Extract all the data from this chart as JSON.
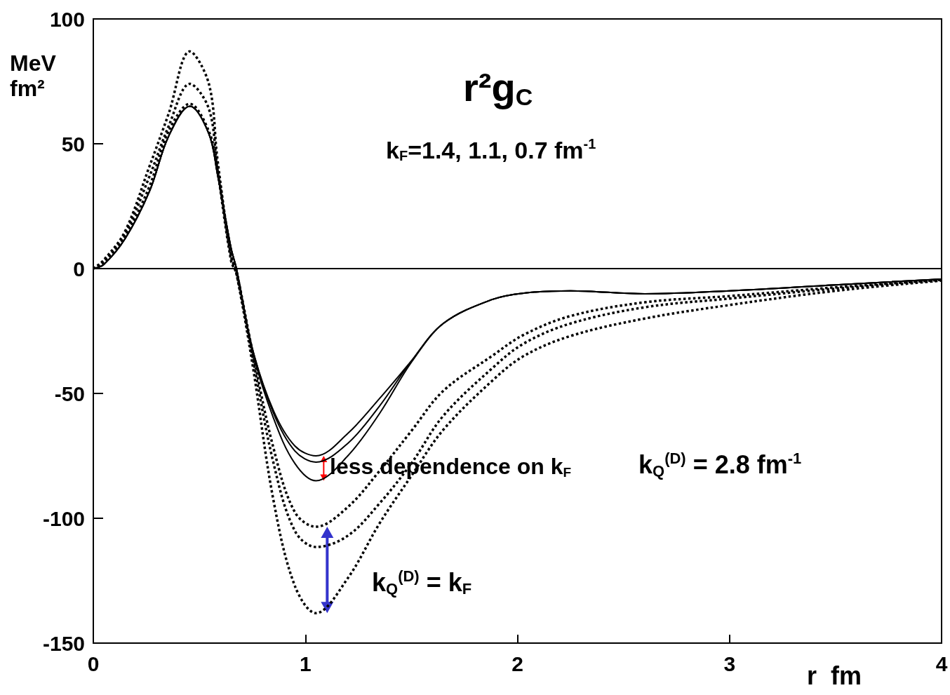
{
  "chart_data": {
    "type": "line",
    "title": "r²g$_{C}$",
    "subtitle": "k$_{F}$=1.4, 1.1, 0.7 fm$^{-1}$",
    "xlabel": "r  fm",
    "ylabel": "MeV\nfm²",
    "x": [
      0,
      0.05,
      0.15,
      0.265,
      0.355,
      0.455,
      0.545,
      0.585,
      0.65,
      0.675,
      0.75,
      0.85,
      0.95,
      1.05,
      1.2,
      1.35,
      1.5,
      1.65,
      1.88,
      2.03,
      2.25,
      2.6,
      3.0,
      3.5,
      4.0
    ],
    "series": [
      {
        "color": "#000000",
        "line_style": "solid",
        "values": [
          0,
          1.7,
          12,
          31,
          53,
          65,
          54,
          38,
          8,
          0,
          -32,
          -57,
          -71,
          -75,
          -66,
          -52,
          -37,
          -22,
          -12.4,
          -9.8,
          -8.9,
          -10.1,
          -8.9,
          -6.5,
          -4.2
        ]
      },
      {
        "color": "#000000",
        "line_style": "solid",
        "values": [
          0,
          1.7,
          12,
          31,
          53,
          65,
          54,
          38,
          8,
          0,
          -32,
          -58,
          -73,
          -77.5,
          -70,
          -55,
          -37,
          -22,
          -12.4,
          -9.8,
          -8.9,
          -10.1,
          -8.9,
          -6.5,
          -4.2
        ]
      },
      {
        "color": "#000000",
        "line_style": "solid",
        "values": [
          0,
          1.7,
          12,
          31,
          53,
          65,
          54,
          38,
          8,
          0,
          -33,
          -60,
          -78,
          -85,
          -75,
          -58,
          -37.5,
          -22,
          -12.4,
          -9.8,
          -8.9,
          -10.1,
          -8.9,
          -6.5,
          -4.2
        ]
      },
      {
        "color": "#000000",
        "line_style": "dotted",
        "values": [
          0,
          2.5,
          13,
          33,
          55,
          66,
          55,
          40,
          5,
          -1,
          -33,
          -72,
          -97.5,
          -103.4,
          -95.5,
          -81,
          -65,
          -49,
          -35,
          -26.5,
          -19,
          -13.5,
          -11,
          -7.5,
          -4.5
        ]
      },
      {
        "color": "#000000",
        "line_style": "dotted",
        "values": [
          0,
          3,
          14,
          37,
          57,
          74,
          64,
          40,
          3,
          -2,
          -35,
          -78,
          -105,
          -111.5,
          -107,
          -94,
          -78,
          -59,
          -40,
          -30,
          -22,
          -15.5,
          -12,
          -8,
          -4.7
        ]
      },
      {
        "color": "#000000",
        "line_style": "dotted",
        "values": [
          0,
          3.5,
          15,
          41,
          62,
          87,
          74,
          44,
          4.5,
          -2,
          -38,
          -93,
          -127,
          -138,
          -124,
          -102,
          -83,
          -64.6,
          -45,
          -35,
          -27,
          -20,
          -14.6,
          -8.9,
          -4.8
        ]
      }
    ],
    "xlim": [
      0,
      4
    ],
    "xticks": [
      0,
      1,
      2,
      3,
      4
    ],
    "ylim": [
      -150,
      100
    ],
    "yticks": [
      -150,
      -100,
      -50,
      0,
      50,
      100
    ],
    "ref_lines": [
      {
        "axis": "y",
        "value": 0,
        "color": "#000000"
      }
    ],
    "grid": false,
    "marker": "none",
    "annotations": [
      "less dependence on k$_{F}$",
      "k$_{Q}$$^{(D)}$ = 2.8 fm$^{-1}$",
      "k$_{Q}$$^{(D)}$ = k$_{F}$"
    ]
  }
}
